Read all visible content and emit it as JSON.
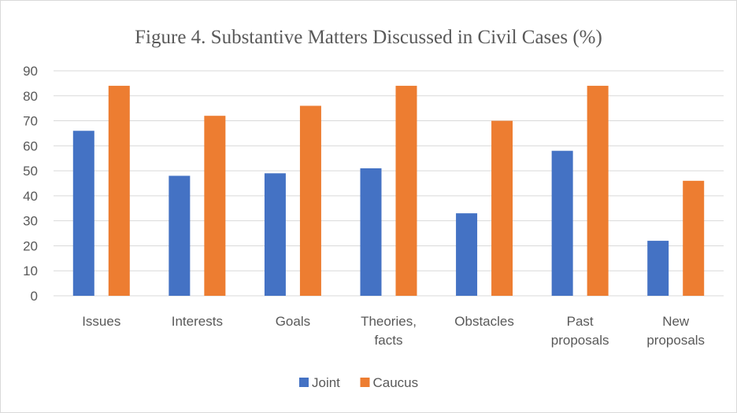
{
  "chart_data": {
    "type": "bar",
    "title": "Figure 4. Substantive Matters Discussed in Civil Cases (%)",
    "xlabel": "",
    "ylabel": "",
    "categories": [
      [
        "Issues"
      ],
      [
        "Interests"
      ],
      [
        "Goals"
      ],
      [
        "Theories,",
        "facts"
      ],
      [
        "Obstacles"
      ],
      [
        "Past",
        "proposals"
      ],
      [
        "New",
        "proposals"
      ]
    ],
    "series": [
      {
        "name": "Joint",
        "color": "#4472c4",
        "values": [
          66,
          48,
          49,
          51,
          33,
          58,
          22
        ]
      },
      {
        "name": "Caucus",
        "color": "#ed7d31",
        "values": [
          84,
          72,
          76,
          84,
          70,
          84,
          46
        ]
      }
    ],
    "ylim": [
      0,
      90
    ],
    "yticks": [
      0,
      10,
      20,
      30,
      40,
      50,
      60,
      70,
      80,
      90
    ],
    "grid": true,
    "legend_position": "bottom"
  }
}
